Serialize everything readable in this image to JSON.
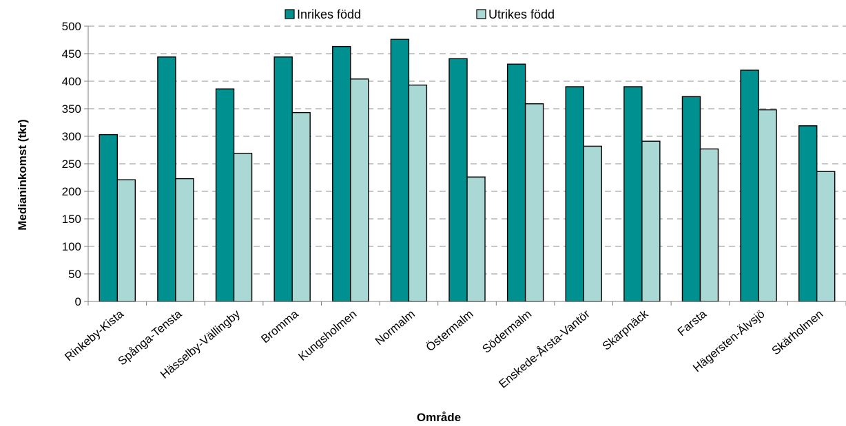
{
  "chart_data": {
    "type": "bar",
    "title": "",
    "xlabel": "Område",
    "ylabel": "Medianinkomst (tkr)",
    "ylim": [
      0,
      500
    ],
    "yticks": [
      0,
      50,
      100,
      150,
      200,
      250,
      300,
      350,
      400,
      450,
      500
    ],
    "grid": true,
    "legend_position": "top",
    "categories": [
      "Rinkeby-Kista",
      "Spånga-Tensta",
      "Hässelby-Vällingby",
      "Bromma",
      "Kungsholmen",
      "Normalm",
      "Östermalm",
      "Södermalm",
      "Enskede-Årsta-Vantör",
      "Skarpnäck",
      "Farsta",
      "Hägersten-Älvsjö",
      "Skärholmen"
    ],
    "series": [
      {
        "name": "Inrikes född",
        "color": "#009090",
        "values": [
          303,
          444,
          386,
          444,
          463,
          476,
          441,
          431,
          390,
          390,
          372,
          420,
          319
        ]
      },
      {
        "name": "Utrikes född",
        "color": "#aad8d4",
        "values": [
          221,
          223,
          269,
          343,
          404,
          393,
          226,
          359,
          282,
          291,
          277,
          348,
          236
        ]
      }
    ]
  }
}
